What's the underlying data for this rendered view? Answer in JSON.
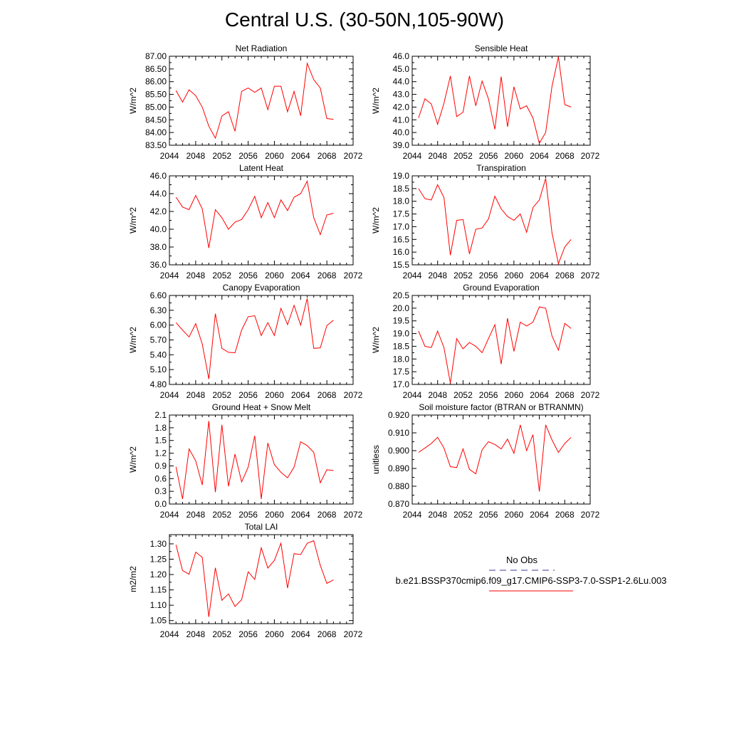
{
  "title": "Central U.S. (30-50N,105-90W)",
  "legend": {
    "entries": [
      {
        "label": "No Obs",
        "color": "#3b3b9a",
        "dash": "dashed"
      },
      {
        "label": "b.e21.BSSP370cmip6.f09_g17.CMIP6-SSP3-7.0-SSP1-2.6Lu.003",
        "color": "#ff0000",
        "dash": "solid"
      }
    ]
  },
  "chart_data": [
    {
      "type": "line",
      "title": "Net Radiation",
      "ylabel": "W/m^2",
      "xlabel": "",
      "xlim": [
        2044,
        2072
      ],
      "ylim": [
        83.5,
        87.0
      ],
      "xticks": [
        "2044",
        "2048",
        "2052",
        "2056",
        "2060",
        "2064",
        "2068",
        "2072"
      ],
      "yticks": [
        "83.50",
        "84.00",
        "84.50",
        "85.00",
        "85.50",
        "86.00",
        "86.50",
        "87.00"
      ],
      "series": [
        {
          "color": "#ff0000",
          "x": [
            2045,
            2046,
            2047,
            2048,
            2049,
            2050,
            2051,
            2052,
            2053,
            2054,
            2055,
            2056,
            2057,
            2058,
            2059,
            2060,
            2061,
            2062,
            2063,
            2064,
            2065,
            2066,
            2067,
            2068,
            2069
          ],
          "values": [
            85.65,
            85.2,
            85.68,
            85.45,
            85.0,
            84.25,
            83.78,
            84.65,
            84.82,
            84.05,
            85.62,
            85.75,
            85.58,
            85.75,
            84.9,
            85.82,
            85.82,
            84.82,
            85.62,
            84.66,
            86.72,
            86.08,
            85.75,
            84.55,
            84.52
          ]
        }
      ]
    },
    {
      "type": "line",
      "title": "Sensible Heat",
      "ylabel": "W/m^2",
      "xlabel": "",
      "xlim": [
        2044,
        2072
      ],
      "ylim": [
        39.0,
        46.0
      ],
      "xticks": [
        "2044",
        "2048",
        "2052",
        "2056",
        "2060",
        "2064",
        "2068",
        "2072"
      ],
      "yticks": [
        "39.0",
        "40.0",
        "41.0",
        "42.0",
        "43.0",
        "44.0",
        "45.0",
        "46.0"
      ],
      "series": [
        {
          "color": "#ff0000",
          "x": [
            2045,
            2046,
            2047,
            2048,
            2049,
            2050,
            2051,
            2052,
            2053,
            2054,
            2055,
            2056,
            2057,
            2058,
            2059,
            2060,
            2061,
            2062,
            2063,
            2064,
            2065,
            2066,
            2067,
            2068,
            2069
          ],
          "values": [
            41.15,
            42.65,
            42.25,
            40.65,
            42.3,
            44.45,
            41.25,
            41.6,
            44.45,
            42.1,
            44.05,
            42.65,
            40.25,
            44.4,
            40.45,
            43.6,
            41.85,
            42.1,
            41.15,
            39.15,
            40.0,
            43.65,
            45.95,
            42.2,
            42.0
          ]
        }
      ]
    },
    {
      "type": "line",
      "title": "Latent Heat",
      "ylabel": "W/m^2",
      "xlabel": "",
      "xlim": [
        2044,
        2072
      ],
      "ylim": [
        36.0,
        46.0
      ],
      "xticks": [
        "2044",
        "2048",
        "2052",
        "2056",
        "2060",
        "2064",
        "2068",
        "2072"
      ],
      "yticks": [
        "36.0",
        "38.0",
        "40.0",
        "42.0",
        "44.0",
        "46.0"
      ],
      "series": [
        {
          "color": "#ff0000",
          "x": [
            2045,
            2046,
            2047,
            2048,
            2049,
            2050,
            2051,
            2052,
            2053,
            2054,
            2055,
            2056,
            2057,
            2058,
            2059,
            2060,
            2061,
            2062,
            2063,
            2064,
            2065,
            2066,
            2067,
            2068,
            2069
          ],
          "values": [
            43.6,
            42.5,
            42.2,
            43.8,
            42.3,
            37.9,
            42.2,
            41.3,
            40.0,
            40.8,
            41.1,
            42.2,
            43.7,
            41.3,
            43.0,
            41.3,
            43.3,
            42.1,
            43.6,
            44.0,
            45.4,
            41.3,
            39.4,
            41.6,
            41.8
          ]
        }
      ]
    },
    {
      "type": "line",
      "title": "Transpiration",
      "ylabel": "W/m^2",
      "xlabel": "",
      "xlim": [
        2044,
        2072
      ],
      "ylim": [
        15.5,
        19.0
      ],
      "xticks": [
        "2044",
        "2048",
        "2052",
        "2056",
        "2060",
        "2064",
        "2068",
        "2072"
      ],
      "yticks": [
        "15.5",
        "16.0",
        "16.5",
        "17.0",
        "17.5",
        "18.0",
        "18.5",
        "19.0"
      ],
      "series": [
        {
          "color": "#ff0000",
          "x": [
            2045,
            2046,
            2047,
            2048,
            2049,
            2050,
            2051,
            2052,
            2053,
            2054,
            2055,
            2056,
            2057,
            2058,
            2059,
            2060,
            2061,
            2062,
            2063,
            2064,
            2065,
            2066,
            2067,
            2068,
            2069
          ],
          "values": [
            18.5,
            18.1,
            18.05,
            18.65,
            18.15,
            15.88,
            17.25,
            17.28,
            15.93,
            16.9,
            16.95,
            17.3,
            18.2,
            17.7,
            17.4,
            17.25,
            17.5,
            16.78,
            17.75,
            18.05,
            18.9,
            16.75,
            15.55,
            16.2,
            16.5
          ]
        }
      ]
    },
    {
      "type": "line",
      "title": "Canopy Evaporation",
      "ylabel": "W/m^2",
      "xlabel": "",
      "xlim": [
        2044,
        2072
      ],
      "ylim": [
        4.8,
        6.6
      ],
      "xticks": [
        "2044",
        "2048",
        "2052",
        "2056",
        "2060",
        "2064",
        "2068",
        "2072"
      ],
      "yticks": [
        "4.80",
        "5.10",
        "5.40",
        "5.70",
        "6.00",
        "6.30",
        "6.60"
      ],
      "series": [
        {
          "color": "#ff0000",
          "x": [
            2045,
            2046,
            2047,
            2048,
            2049,
            2050,
            2051,
            2052,
            2053,
            2054,
            2055,
            2056,
            2057,
            2058,
            2059,
            2060,
            2061,
            2062,
            2063,
            2064,
            2065,
            2066,
            2067,
            2068,
            2069
          ],
          "values": [
            6.05,
            5.9,
            5.76,
            6.03,
            5.62,
            4.91,
            6.23,
            5.53,
            5.45,
            5.44,
            5.9,
            6.17,
            6.19,
            5.79,
            6.05,
            5.79,
            6.34,
            6.01,
            6.4,
            6.0,
            6.54,
            5.53,
            5.54,
            5.99,
            6.1
          ]
        }
      ]
    },
    {
      "type": "line",
      "title": "Ground Evaporation",
      "ylabel": "W/m^2",
      "xlabel": "",
      "xlim": [
        2044,
        2072
      ],
      "ylim": [
        17.0,
        20.5
      ],
      "xticks": [
        "2044",
        "2048",
        "2052",
        "2056",
        "2060",
        "2064",
        "2068",
        "2072"
      ],
      "yticks": [
        "17.0",
        "17.5",
        "18.0",
        "18.5",
        "19.0",
        "19.5",
        "20.0",
        "20.5"
      ],
      "series": [
        {
          "color": "#ff0000",
          "x": [
            2045,
            2046,
            2047,
            2048,
            2049,
            2050,
            2051,
            2052,
            2053,
            2054,
            2055,
            2056,
            2057,
            2058,
            2059,
            2060,
            2061,
            2062,
            2063,
            2064,
            2065,
            2066,
            2067,
            2068,
            2069
          ],
          "values": [
            19.1,
            18.5,
            18.45,
            19.1,
            18.45,
            17.05,
            18.8,
            18.4,
            18.65,
            18.5,
            18.25,
            18.8,
            19.35,
            17.8,
            19.6,
            18.3,
            19.45,
            19.3,
            19.45,
            20.05,
            20.0,
            18.9,
            18.35,
            19.4,
            19.2
          ]
        }
      ]
    },
    {
      "type": "line",
      "title": "Ground Heat + Snow Melt",
      "ylabel": "W/m^2",
      "xlabel": "",
      "xlim": [
        2044,
        2072
      ],
      "ylim": [
        0.0,
        2.1
      ],
      "xticks": [
        "2044",
        "2048",
        "2052",
        "2056",
        "2060",
        "2064",
        "2068",
        "2072"
      ],
      "yticks": [
        "0.0",
        "0.3",
        "0.6",
        "0.9",
        "1.2",
        "1.5",
        "1.8",
        "2.1"
      ],
      "series": [
        {
          "color": "#ff0000",
          "x": [
            2045,
            2046,
            2047,
            2048,
            2049,
            2050,
            2051,
            2052,
            2053,
            2054,
            2055,
            2056,
            2057,
            2058,
            2059,
            2060,
            2061,
            2062,
            2063,
            2064,
            2065,
            2066,
            2067,
            2068,
            2069
          ],
          "values": [
            0.88,
            0.12,
            1.3,
            1.02,
            0.45,
            1.96,
            0.28,
            1.87,
            0.42,
            1.18,
            0.52,
            0.87,
            1.61,
            0.12,
            1.44,
            0.93,
            0.75,
            0.62,
            0.87,
            1.47,
            1.38,
            1.22,
            0.5,
            0.81,
            0.79
          ]
        }
      ]
    },
    {
      "type": "line",
      "title": "Soil moisture factor (BTRAN or BTRANMN)",
      "ylabel": "unitless",
      "xlabel": "",
      "xlim": [
        2044,
        2072
      ],
      "ylim": [
        0.87,
        0.92
      ],
      "xticks": [
        "2044",
        "2048",
        "2052",
        "2056",
        "2060",
        "2064",
        "2068",
        "2072"
      ],
      "yticks": [
        "0.870",
        "0.880",
        "0.890",
        "0.900",
        "0.910",
        "0.920"
      ],
      "series": [
        {
          "color": "#ff0000",
          "x": [
            2045,
            2046,
            2047,
            2048,
            2049,
            2050,
            2051,
            2052,
            2053,
            2054,
            2055,
            2056,
            2057,
            2058,
            2059,
            2060,
            2061,
            2062,
            2063,
            2064,
            2065,
            2066,
            2067,
            2068,
            2069
          ],
          "values": [
            0.899,
            0.9015,
            0.904,
            0.9075,
            0.9015,
            0.891,
            0.8905,
            0.901,
            0.8895,
            0.887,
            0.9005,
            0.905,
            0.9035,
            0.901,
            0.9065,
            0.8985,
            0.9145,
            0.9,
            0.909,
            0.877,
            0.9145,
            0.906,
            0.899,
            0.904,
            0.9075
          ]
        }
      ]
    },
    {
      "type": "line",
      "title": "Total LAI",
      "ylabel": "m2/m2",
      "xlabel": "",
      "xlim": [
        2044,
        2072
      ],
      "ylim": [
        1.04,
        1.33
      ],
      "xticks": [
        "2044",
        "2048",
        "2052",
        "2056",
        "2060",
        "2064",
        "2068",
        "2072"
      ],
      "yticks": [
        "1.05",
        "1.10",
        "1.15",
        "1.20",
        "1.25",
        "1.30"
      ],
      "series": [
        {
          "color": "#ff0000",
          "x": [
            2045,
            2046,
            2047,
            2048,
            2049,
            2050,
            2051,
            2052,
            2053,
            2054,
            2055,
            2056,
            2057,
            2058,
            2059,
            2060,
            2061,
            2062,
            2063,
            2064,
            2065,
            2066,
            2067,
            2068,
            2069
          ],
          "values": [
            1.297,
            1.213,
            1.201,
            1.273,
            1.256,
            1.062,
            1.222,
            1.116,
            1.137,
            1.096,
            1.118,
            1.209,
            1.184,
            1.287,
            1.221,
            1.246,
            1.302,
            1.156,
            1.268,
            1.265,
            1.302,
            1.31,
            1.23,
            1.171,
            1.183
          ]
        }
      ]
    }
  ]
}
